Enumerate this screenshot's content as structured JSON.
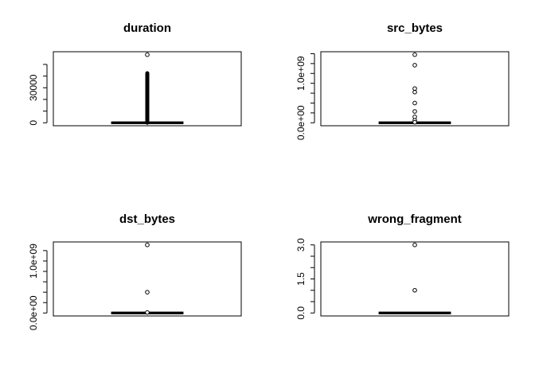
{
  "chart_data": [
    {
      "type": "boxplot",
      "title": "duration",
      "xlabel": "",
      "ylabel": "",
      "ylim": [
        0,
        58329
      ],
      "yticks": [
        0,
        10000,
        20000,
        30000,
        40000,
        50000
      ],
      "ytick_labels": [
        "0",
        "",
        "",
        "30000",
        "",
        ""
      ],
      "box": {
        "min": 0,
        "q1": 0,
        "median": 0,
        "q3": 0,
        "max": 0
      },
      "outlier_band": [
        0,
        42448
      ],
      "outliers": [
        58329
      ]
    },
    {
      "type": "boxplot",
      "title": "src_bytes",
      "xlabel": "",
      "ylabel": "",
      "ylim": [
        0,
        1379963888
      ],
      "yticks": [
        0,
        200000000,
        400000000,
        600000000,
        800000000,
        1000000000,
        1200000000,
        1400000000
      ],
      "ytick_labels": [
        "0.0e+00",
        "",
        "",
        "",
        "",
        "1.0e+09",
        "",
        ""
      ],
      "box": {
        "min": 0,
        "q1": 0,
        "median": 0,
        "q3": 0,
        "max": 0
      },
      "outliers": [
        1379963888,
        1167519497,
        693375640,
        621568663,
        400000000,
        230000000,
        120000000,
        50000000,
        10000000
      ]
    },
    {
      "type": "boxplot",
      "title": "dst_bytes",
      "xlabel": "",
      "ylabel": "",
      "ylim": [
        0,
        1309937401
      ],
      "yticks": [
        0,
        200000000,
        400000000,
        600000000,
        800000000,
        1000000000,
        1200000000
      ],
      "ytick_labels": [
        "0.0e+00",
        "",
        "",
        "",
        "",
        "1.0e+09",
        ""
      ],
      "box": {
        "min": 0,
        "q1": 0,
        "median": 0,
        "q3": 0,
        "max": 0
      },
      "outliers": [
        1309937401,
        400000000,
        10000000
      ]
    },
    {
      "type": "boxplot",
      "title": "wrong_fragment",
      "xlabel": "",
      "ylabel": "",
      "ylim": [
        0,
        3
      ],
      "yticks": [
        0,
        0.5,
        1,
        1.5,
        2,
        2.5,
        3
      ],
      "ytick_labels": [
        "0.0",
        "",
        "",
        "1.5",
        "",
        "",
        "3.0"
      ],
      "box": {
        "min": 0,
        "q1": 0,
        "median": 0,
        "q3": 0,
        "max": 0
      },
      "outliers": [
        3,
        1
      ]
    }
  ]
}
